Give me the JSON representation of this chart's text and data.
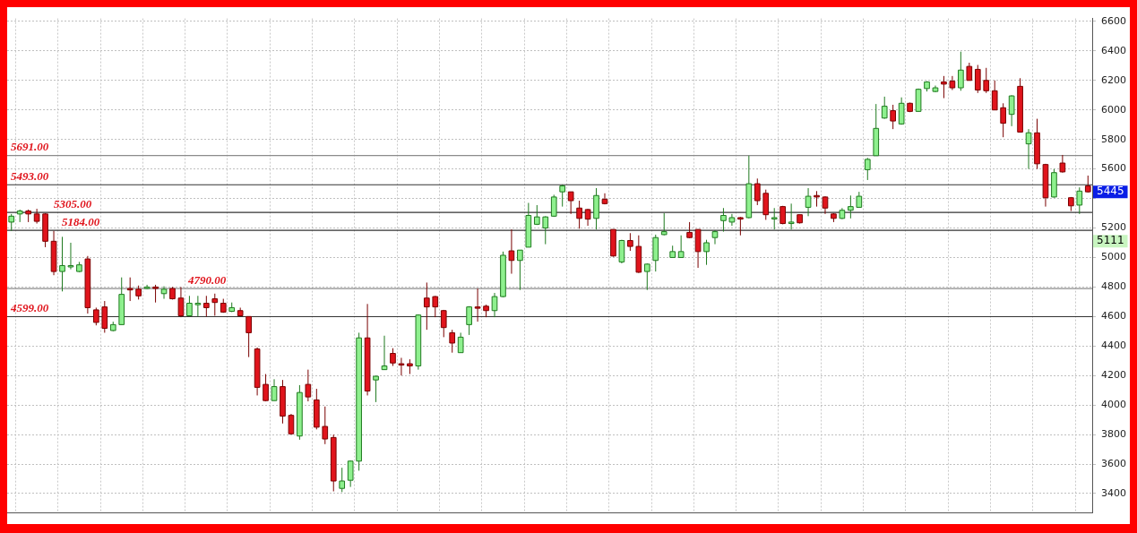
{
  "chart_data": {
    "type": "candlestick",
    "categories": [
      null,
      null,
      null,
      null,
      null,
      null,
      null,
      null,
      null,
      null,
      null,
      null,
      null,
      null,
      null,
      null,
      null,
      null,
      null,
      null,
      null,
      null,
      null,
      null,
      null,
      null,
      null,
      null,
      null,
      null,
      null,
      null,
      null,
      null,
      null,
      null,
      null,
      null,
      null,
      null,
      null,
      null,
      null,
      null,
      null,
      null,
      null,
      null,
      null,
      null,
      null,
      null,
      null,
      null,
      null,
      null,
      null,
      null,
      null,
      null,
      null,
      null,
      null,
      null,
      null,
      null,
      null,
      null,
      null,
      null,
      null,
      null,
      null,
      null,
      null,
      null,
      null,
      null,
      null,
      null,
      null,
      null,
      null,
      null,
      null,
      null,
      null,
      null,
      null,
      null,
      null,
      null,
      null,
      null,
      null,
      null,
      null,
      null,
      null,
      null,
      null,
      null,
      null,
      null,
      null,
      null,
      null,
      null,
      null,
      null,
      null,
      null,
      null,
      null,
      null,
      null,
      null,
      null,
      null,
      null,
      null,
      null,
      null,
      null,
      null,
      null,
      null,
      null
    ],
    "ohlc": [
      [
        5240,
        5295,
        5180,
        5280
      ],
      [
        5295,
        5325,
        5240,
        5315
      ],
      [
        5315,
        5325,
        5240,
        5295
      ],
      [
        5295,
        5330,
        5230,
        5245
      ],
      [
        5295,
        5300,
        5070,
        5110
      ],
      [
        5110,
        5180,
        4880,
        4905
      ],
      [
        4905,
        5140,
        4770,
        4945
      ],
      [
        4945,
        5100,
        4920,
        4945
      ],
      [
        4905,
        4970,
        4900,
        4950
      ],
      [
        4990,
        5010,
        4620,
        4660
      ],
      [
        4645,
        4660,
        4540,
        4560
      ],
      [
        4665,
        4705,
        4490,
        4520
      ],
      [
        4505,
        4565,
        4500,
        4545
      ],
      [
        4545,
        4865,
        4545,
        4750
      ],
      [
        4790,
        4865,
        4705,
        4780
      ],
      [
        4785,
        4810,
        4715,
        4740
      ],
      [
        4790,
        4815,
        4785,
        4800
      ],
      [
        4800,
        4815,
        4695,
        4790
      ],
      [
        4755,
        4805,
        4720,
        4785
      ],
      [
        4790,
        4800,
        4715,
        4720
      ],
      [
        4725,
        4800,
        4595,
        4605
      ],
      [
        4605,
        4740,
        4600,
        4690
      ],
      [
        4680,
        4740,
        4600,
        4690
      ],
      [
        4690,
        4740,
        4600,
        4660
      ],
      [
        4720,
        4755,
        4605,
        4695
      ],
      [
        4690,
        4720,
        4625,
        4630
      ],
      [
        4635,
        4695,
        4630,
        4660
      ],
      [
        4640,
        4660,
        4600,
        4605
      ],
      [
        4600,
        4600,
        4325,
        4490
      ],
      [
        4380,
        4390,
        4065,
        4120
      ],
      [
        4140,
        4210,
        4025,
        4030
      ],
      [
        4030,
        4175,
        4030,
        4125
      ],
      [
        4125,
        4170,
        3875,
        3925
      ],
      [
        3930,
        3940,
        3800,
        3805
      ],
      [
        3790,
        4135,
        3765,
        4085
      ],
      [
        4140,
        4240,
        4025,
        4055
      ],
      [
        4035,
        4110,
        3835,
        3850
      ],
      [
        3855,
        3990,
        3735,
        3770
      ],
      [
        3780,
        3800,
        3415,
        3485
      ],
      [
        3435,
        3575,
        3410,
        3485
      ],
      [
        3490,
        3625,
        3445,
        3620
      ],
      [
        3620,
        4490,
        3555,
        4455
      ],
      [
        4455,
        4685,
        4065,
        4095
      ],
      [
        4170,
        4200,
        4020,
        4195
      ],
      [
        4240,
        4470,
        4240,
        4265
      ],
      [
        4350,
        4385,
        4265,
        4285
      ],
      [
        4280,
        4320,
        4200,
        4275
      ],
      [
        4280,
        4310,
        4210,
        4265
      ],
      [
        4265,
        4615,
        4240,
        4610
      ],
      [
        4725,
        4830,
        4510,
        4665
      ],
      [
        4735,
        4740,
        4595,
        4665
      ],
      [
        4640,
        4645,
        4460,
        4525
      ],
      [
        4490,
        4510,
        4355,
        4420
      ],
      [
        4355,
        4490,
        4355,
        4460
      ],
      [
        4545,
        4670,
        4475,
        4665
      ],
      [
        4665,
        4790,
        4565,
        4660
      ],
      [
        4670,
        4680,
        4595,
        4640
      ],
      [
        4640,
        4760,
        4595,
        4735
      ],
      [
        4735,
        5040,
        4730,
        5015
      ],
      [
        5045,
        5190,
        4890,
        4980
      ],
      [
        4980,
        5050,
        4780,
        5050
      ],
      [
        5070,
        5370,
        5070,
        5285
      ],
      [
        5225,
        5355,
        5220,
        5275
      ],
      [
        5200,
        5280,
        5090,
        5275
      ],
      [
        5280,
        5425,
        5275,
        5410
      ],
      [
        5445,
        5495,
        5345,
        5485
      ],
      [
        5445,
        5445,
        5295,
        5385
      ],
      [
        5335,
        5385,
        5195,
        5265
      ],
      [
        5325,
        5330,
        5215,
        5260
      ],
      [
        5265,
        5470,
        5190,
        5420
      ],
      [
        5395,
        5435,
        5360,
        5365
      ],
      [
        5190,
        5190,
        5005,
        5010
      ],
      [
        4970,
        5120,
        4960,
        5115
      ],
      [
        5115,
        5165,
        5045,
        5075
      ],
      [
        5075,
        5150,
        4895,
        4900
      ],
      [
        4905,
        4960,
        4780,
        4955
      ],
      [
        4980,
        5155,
        4905,
        5135
      ],
      [
        5155,
        5300,
        5150,
        5175
      ],
      [
        5000,
        5080,
        5000,
        5040
      ],
      [
        5000,
        5150,
        5000,
        5040
      ],
      [
        5170,
        5240,
        5130,
        5135
      ],
      [
        5190,
        5190,
        4930,
        5040
      ],
      [
        5040,
        5120,
        4950,
        5100
      ],
      [
        5135,
        5185,
        5090,
        5175
      ],
      [
        5250,
        5335,
        5175,
        5285
      ],
      [
        5240,
        5295,
        5215,
        5270
      ],
      [
        5270,
        5275,
        5150,
        5260
      ],
      [
        5270,
        5690,
        5265,
        5500
      ],
      [
        5500,
        5535,
        5355,
        5385
      ],
      [
        5435,
        5460,
        5255,
        5290
      ],
      [
        5265,
        5335,
        5190,
        5270
      ],
      [
        5345,
        5350,
        5225,
        5230
      ],
      [
        5230,
        5365,
        5190,
        5240
      ],
      [
        5290,
        5290,
        5230,
        5235
      ],
      [
        5340,
        5470,
        5280,
        5415
      ],
      [
        5420,
        5450,
        5345,
        5410
      ],
      [
        5410,
        5415,
        5295,
        5335
      ],
      [
        5295,
        5300,
        5240,
        5265
      ],
      [
        5265,
        5335,
        5260,
        5320
      ],
      [
        5320,
        5420,
        5265,
        5345
      ],
      [
        5340,
        5445,
        5340,
        5415
      ],
      [
        5595,
        5675,
        5525,
        5665
      ],
      [
        5690,
        6040,
        5690,
        5875
      ],
      [
        5945,
        6090,
        5940,
        6025
      ],
      [
        5995,
        6035,
        5870,
        5925
      ],
      [
        5905,
        6085,
        5900,
        6045
      ],
      [
        6045,
        6050,
        5985,
        5990
      ],
      [
        5990,
        6145,
        5990,
        6140
      ],
      [
        6145,
        6195,
        6125,
        6190
      ],
      [
        6125,
        6165,
        6120,
        6150
      ],
      [
        6190,
        6230,
        6080,
        6175
      ],
      [
        6195,
        6230,
        6135,
        6150
      ],
      [
        6150,
        6395,
        6130,
        6270
      ],
      [
        6295,
        6320,
        6200,
        6200
      ],
      [
        6275,
        6305,
        6115,
        6135
      ],
      [
        6200,
        6285,
        6115,
        6130
      ],
      [
        6130,
        6200,
        6000,
        6000
      ],
      [
        6015,
        6045,
        5815,
        5910
      ],
      [
        5970,
        6100,
        5890,
        6095
      ],
      [
        6160,
        6215,
        5850,
        5850
      ],
      [
        5770,
        5870,
        5600,
        5845
      ],
      [
        5845,
        5940,
        5600,
        5635
      ],
      [
        5630,
        5635,
        5345,
        5405
      ],
      [
        5410,
        5600,
        5405,
        5575
      ],
      [
        5640,
        5695,
        5575,
        5580
      ],
      [
        5405,
        5410,
        5315,
        5350
      ],
      [
        5355,
        5475,
        5295,
        5450
      ],
      [
        5485,
        5555,
        5440,
        5445
      ]
    ],
    "ylim": [
      3270,
      6620
    ],
    "yticks": [
      3400,
      3600,
      3800,
      4000,
      4200,
      4400,
      4600,
      4800,
      5000,
      5200,
      {
        "value": 5400,
        "label": null
      },
      5600,
      5800,
      6000,
      6200,
      6400,
      6600
    ],
    "ref_lines": [
      {
        "axis": "y",
        "value": 5691,
        "label": "5691.00",
        "color": "#8c8c8c"
      },
      {
        "axis": "y",
        "value": 5493,
        "label": "5493.00",
        "color": "#333333"
      },
      {
        "axis": "y",
        "value": 5305,
        "label": "5305.00",
        "color": "#333333"
      },
      {
        "axis": "y",
        "value": 5184,
        "label": "5184.00",
        "color": "#333333"
      },
      {
        "axis": "y",
        "value": 4790,
        "label": "4790.00",
        "color": "#8c8c8c"
      },
      {
        "axis": "y",
        "value": 4599,
        "label": "4599.00",
        "color": "#333333"
      }
    ],
    "annotations": [
      {
        "text": "5445",
        "y": 5445
      },
      {
        "text": "5111",
        "y": 5111
      }
    ],
    "grid": true,
    "tick_labels": "y"
  }
}
